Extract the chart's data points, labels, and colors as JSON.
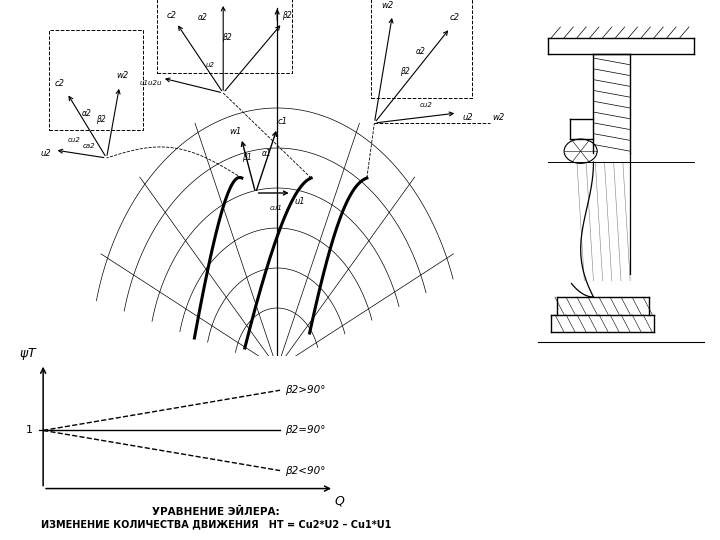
{
  "bg_color": "#ffffff",
  "line_color": "#000000",
  "subtitle_line1": "УРАВНЕНИЕ ЭЙЛЕРА:",
  "subtitle_line2": "ИЗМЕНЕНИЕ КОЛИЧЕСТВА ДВИЖЕНИЯ   HТ = Cu2*U2 – Cu1*U1",
  "graph_ylabel": "ψT",
  "graph_xlabel": "Q",
  "graph_y1_label": "1",
  "line_gt90_label": "β2>90°",
  "line_eq90_label": "β2=90°",
  "line_lt90_label": "β2<90°"
}
